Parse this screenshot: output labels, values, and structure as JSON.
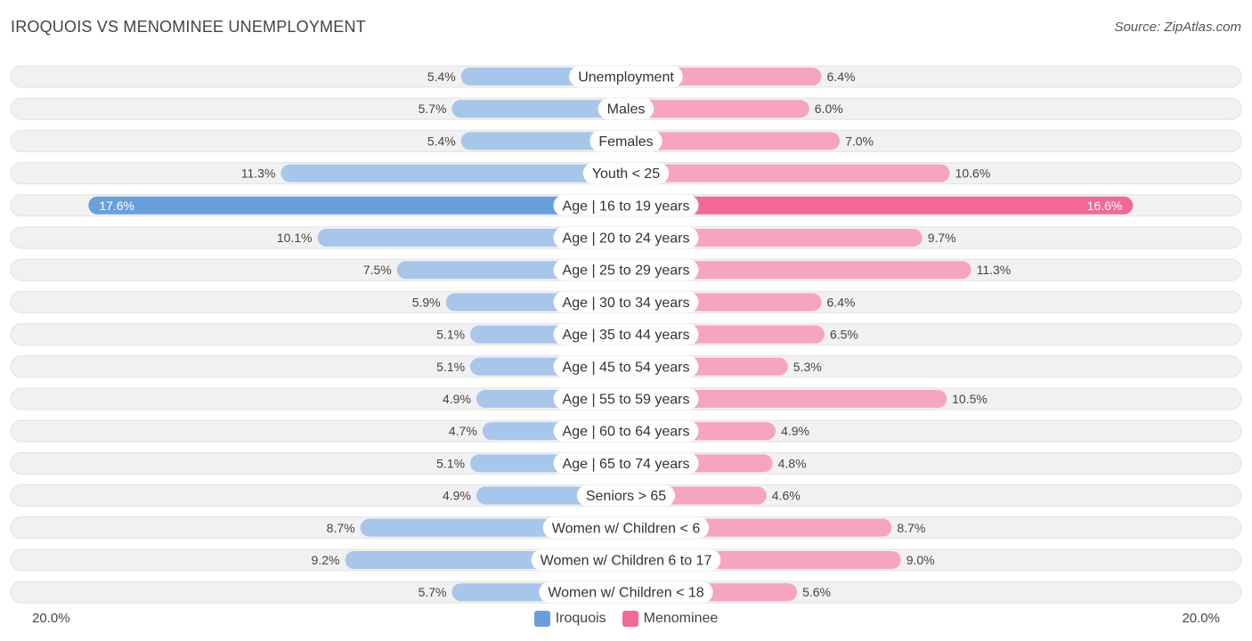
{
  "title": "IROQUOIS VS MENOMINEE UNEMPLOYMENT",
  "source": "Source: ZipAtlas.com",
  "colors": {
    "left_bar": "#a7c6ea",
    "left_bar_highlight": "#6a9fdc",
    "right_bar": "#f5a5bf",
    "right_bar_highlight": "#f06a95",
    "row_bg": "#f1f1f1",
    "label_bg": "#ffffff"
  },
  "chart_data": {
    "type": "bar",
    "orientation": "horizontal-diverging",
    "title": "IROQUOIS VS MENOMINEE UNEMPLOYMENT",
    "axis_max": 20.0,
    "axis_left_label": "20.0%",
    "axis_right_label": "20.0%",
    "categories": [
      "Unemployment",
      "Males",
      "Females",
      "Youth < 25",
      "Age | 16 to 19 years",
      "Age | 20 to 24 years",
      "Age | 25 to 29 years",
      "Age | 30 to 34 years",
      "Age | 35 to 44 years",
      "Age | 45 to 54 years",
      "Age | 55 to 59 years",
      "Age | 60 to 64 years",
      "Age | 65 to 74 years",
      "Seniors > 65",
      "Women w/ Children < 6",
      "Women w/ Children 6 to 17",
      "Women w/ Children < 18"
    ],
    "series": [
      {
        "name": "Iroquois",
        "values": [
          5.4,
          5.7,
          5.4,
          11.3,
          17.6,
          10.1,
          7.5,
          5.9,
          5.1,
          5.1,
          4.9,
          4.7,
          5.1,
          4.9,
          8.7,
          9.2,
          5.7
        ],
        "labels": [
          "5.4%",
          "5.7%",
          "5.4%",
          "11.3%",
          "17.6%",
          "10.1%",
          "7.5%",
          "5.9%",
          "5.1%",
          "5.1%",
          "4.9%",
          "4.7%",
          "5.1%",
          "4.9%",
          "8.7%",
          "9.2%",
          "5.7%"
        ]
      },
      {
        "name": "Menominee",
        "values": [
          6.4,
          6.0,
          7.0,
          10.6,
          16.6,
          9.7,
          11.3,
          6.4,
          6.5,
          5.3,
          10.5,
          4.9,
          4.8,
          4.6,
          8.7,
          9.0,
          5.6
        ],
        "labels": [
          "6.4%",
          "6.0%",
          "7.0%",
          "10.6%",
          "16.6%",
          "9.7%",
          "11.3%",
          "6.4%",
          "6.5%",
          "5.3%",
          "10.5%",
          "4.9%",
          "4.8%",
          "4.6%",
          "8.7%",
          "9.0%",
          "5.6%"
        ]
      }
    ],
    "legend": [
      "Iroquois",
      "Menominee"
    ],
    "legend_position": "bottom-center"
  }
}
